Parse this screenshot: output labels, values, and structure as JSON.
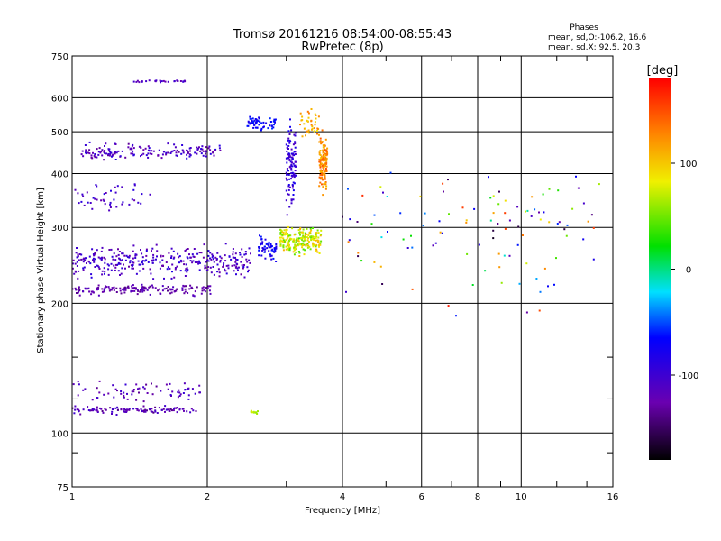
{
  "chart_data": {
    "type": "scatter",
    "title": "Tromsø 20161216 08:54:00-08:55:43",
    "subtitle": "RwPretec (8p)",
    "xlabel": "Frequency [MHz]",
    "ylabel": "Stationary phase Virtual Height [km]",
    "x_scale": "log",
    "y_scale": "log",
    "xlim": [
      1,
      16
    ],
    "ylim": [
      75,
      750
    ],
    "x_ticks": [
      1,
      2,
      4,
      6,
      8,
      10,
      16
    ],
    "x_tick_labels": [
      "1",
      "2",
      "4",
      "6",
      "8",
      "10",
      "16"
    ],
    "x_minor_ticks": [
      3,
      5,
      7,
      9,
      12,
      14
    ],
    "y_ticks": [
      75,
      100,
      200,
      300,
      400,
      500,
      600,
      750
    ],
    "y_tick_labels": [
      "75",
      "100",
      "200",
      "300",
      "400",
      "500",
      "600",
      "750"
    ],
    "y_minor_ticks": [
      90,
      120,
      150
    ],
    "grid": true,
    "stats": {
      "heading": "Phases",
      "line_o": "mean, sd,O:-106.2, 16.6",
      "line_x": "mean, sd,X:  92.5, 20.3"
    },
    "colorbar": {
      "label": "[deg]",
      "range": [
        -180,
        180
      ],
      "ticks": [
        100,
        0,
        -100
      ],
      "tick_labels": [
        "100",
        "0",
        "-100"
      ]
    },
    "point_groups": [
      {
        "x_range": [
          1.0,
          2.05
        ],
        "y_center": 215,
        "y_spread": 8,
        "n": 160,
        "phase": [
          -140,
          -110
        ]
      },
      {
        "x_range": [
          1.0,
          2.5
        ],
        "y_center": 250,
        "y_spread": 28,
        "n": 330,
        "phase": [
          -130,
          -85
        ]
      },
      {
        "x_range": [
          1.05,
          2.15
        ],
        "y_center": 450,
        "y_spread": 25,
        "n": 160,
        "phase": [
          -135,
          -85
        ]
      },
      {
        "x_range": [
          1.0,
          1.5
        ],
        "y_center": 355,
        "y_spread": 40,
        "n": 45,
        "phase": [
          -125,
          -85
        ]
      },
      {
        "x_range": [
          1.35,
          1.8
        ],
        "y_center": 655,
        "y_spread": 6,
        "n": 28,
        "phase": [
          -125,
          -95
        ]
      },
      {
        "x_range": [
          1.0,
          1.9
        ],
        "y_center": 113,
        "y_spread": 3,
        "n": 110,
        "phase": [
          -140,
          -100
        ]
      },
      {
        "x_range": [
          1.0,
          1.95
        ],
        "y_center": 125,
        "y_spread": 9,
        "n": 70,
        "phase": [
          -135,
          -95
        ]
      },
      {
        "x_range": [
          2.6,
          2.85
        ],
        "y_center": 268,
        "y_spread": 30,
        "n": 60,
        "phase": [
          -90,
          -60
        ]
      },
      {
        "x_range": [
          2.45,
          2.85
        ],
        "y_center": 525,
        "y_spread": 25,
        "n": 60,
        "phase": [
          -85,
          -55
        ]
      },
      {
        "x_range": [
          2.9,
          3.6
        ],
        "y_center": 280,
        "y_spread": 30,
        "n": 220,
        "phase": [
          40,
          110
        ]
      },
      {
        "x_range": [
          3.55,
          3.7
        ],
        "y_center": 430,
        "y_spread": 90,
        "n": 140,
        "phase": [
          100,
          150
        ]
      },
      {
        "x_range": [
          3.0,
          3.15
        ],
        "y_center": 420,
        "y_spread": 130,
        "n": 110,
        "phase": [
          -115,
          -75
        ]
      },
      {
        "x_range": [
          3.2,
          3.6
        ],
        "y_center": 520,
        "y_spread": 70,
        "n": 40,
        "phase": [
          90,
          140
        ]
      },
      {
        "x_range": [
          2.5,
          2.6
        ],
        "y_center": 112,
        "y_spread": 2,
        "n": 10,
        "phase": [
          60,
          75
        ]
      },
      {
        "x_range": [
          4.0,
          15.0
        ],
        "y_center": 300,
        "y_spread": 160,
        "n": 110,
        "phase": [
          -170,
          170
        ]
      }
    ]
  }
}
